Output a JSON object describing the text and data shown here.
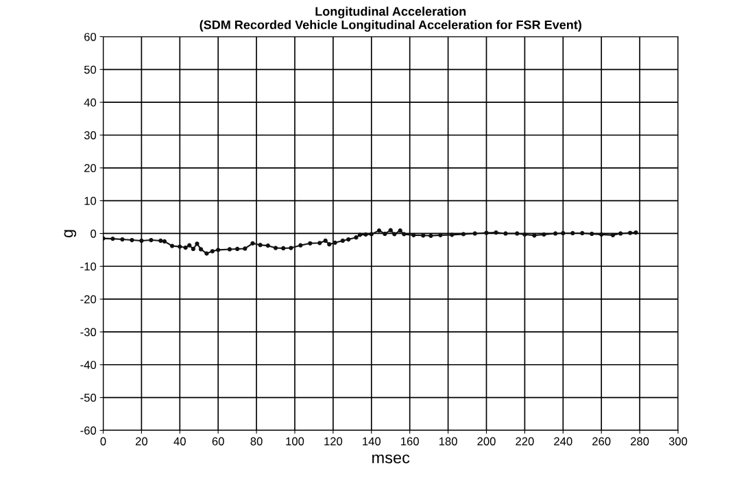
{
  "chart_data": {
    "type": "line",
    "title": "Longitudinal Acceleration\n(SDM Recorded Vehicle Longitudinal Acceleration for FSR Event)",
    "xlabel": "msec",
    "ylabel": "g",
    "series": [
      {
        "color": "#111111",
        "x": [
          0,
          5,
          10,
          15,
          20,
          25,
          30,
          32,
          36,
          40,
          43,
          45,
          47,
          49,
          51,
          54,
          57,
          60,
          66,
          70,
          74,
          78,
          82,
          86,
          90,
          94,
          98,
          103,
          108,
          113,
          116,
          118,
          121,
          125,
          128,
          132,
          134,
          137,
          140,
          144,
          147,
          150,
          152,
          155,
          157,
          162,
          167,
          171,
          176,
          182,
          188,
          194,
          200,
          205,
          210,
          216,
          220,
          225,
          230,
          236,
          240,
          245,
          250,
          255,
          260,
          266,
          270,
          275,
          278
        ],
        "values": [
          -1.5,
          -1.6,
          -1.8,
          -2.0,
          -2.2,
          -2.0,
          -2.2,
          -2.4,
          -3.8,
          -4.0,
          -4.3,
          -3.6,
          -4.7,
          -3.1,
          -4.8,
          -6.1,
          -5.4,
          -5.0,
          -4.8,
          -4.7,
          -4.6,
          -3.0,
          -3.5,
          -3.7,
          -4.4,
          -4.5,
          -4.4,
          -3.6,
          -3.0,
          -2.9,
          -2.2,
          -3.3,
          -2.8,
          -2.2,
          -1.8,
          -1.2,
          -0.4,
          -0.3,
          -0.2,
          0.9,
          -0.1,
          1.0,
          -0.2,
          0.9,
          -0.2,
          -0.5,
          -0.6,
          -0.7,
          -0.5,
          -0.4,
          -0.2,
          0.0,
          0.2,
          0.3,
          0.0,
          0.0,
          -0.3,
          -0.6,
          -0.3,
          0.0,
          0.1,
          0.1,
          0.1,
          -0.1,
          -0.3,
          -0.5,
          0.0,
          0.2,
          0.3
        ]
      }
    ],
    "xlim": [
      0,
      300
    ],
    "xticks": [
      0,
      20,
      40,
      60,
      80,
      100,
      120,
      140,
      160,
      180,
      200,
      220,
      240,
      260,
      280,
      300
    ],
    "ylim": [
      -60,
      60
    ],
    "yticks": [
      -60,
      -50,
      -40,
      -30,
      -20,
      -10,
      0,
      10,
      20,
      30,
      40,
      50,
      60
    ],
    "grid": true,
    "marker": "circle",
    "line_style": "solid"
  }
}
